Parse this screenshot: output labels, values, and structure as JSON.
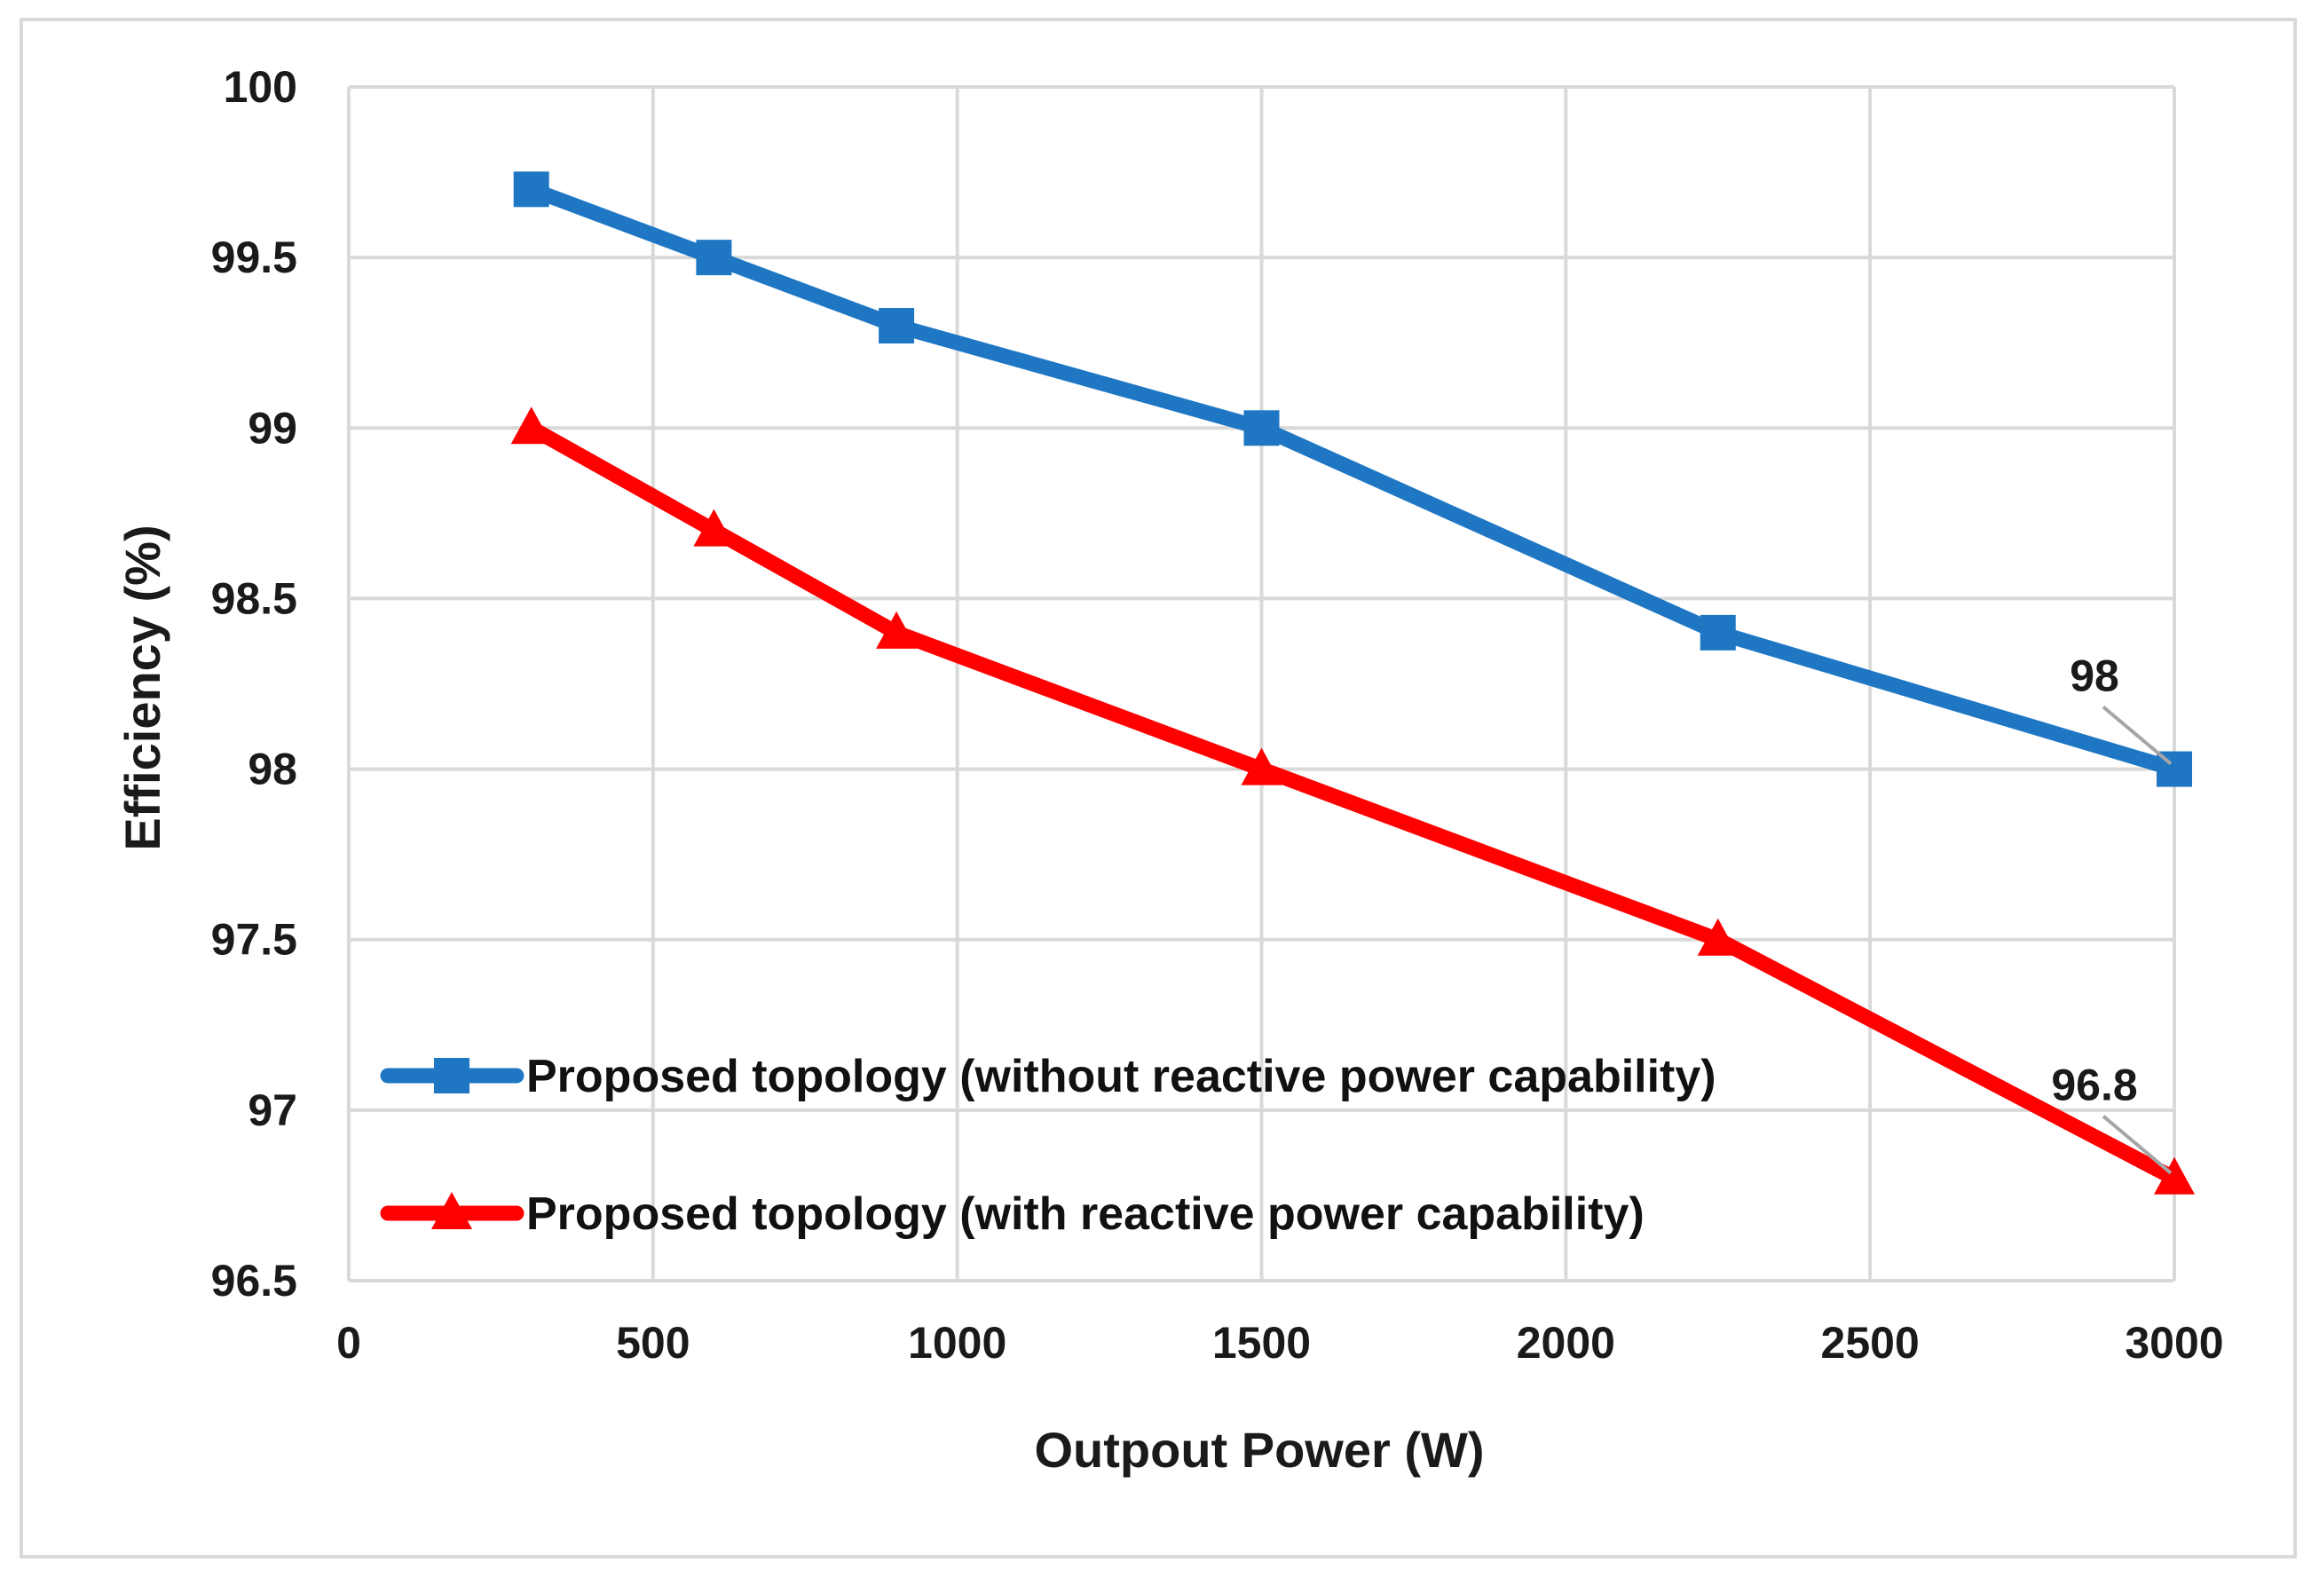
{
  "chart_data": {
    "type": "line",
    "title": "",
    "xlabel": "Outpout Power (W)",
    "ylabel": "Efficiency (%)",
    "xlim": [
      0,
      3000
    ],
    "ylim": [
      96.5,
      100
    ],
    "xticks": [
      "0",
      "500",
      "1000",
      "1500",
      "2000",
      "2500",
      "3000"
    ],
    "xtick_values": [
      0,
      500,
      1000,
      1500,
      2000,
      2500,
      3000
    ],
    "yticks": [
      "96.5",
      "97",
      "97.5",
      "98",
      "98.5",
      "99",
      "99.5",
      "100"
    ],
    "ytick_values": [
      96.5,
      97,
      97.5,
      98,
      98.5,
      99,
      99.5,
      100
    ],
    "grid": true,
    "legend_position": "bottom-left",
    "series": [
      {
        "name": "Proposed topology (without reactive power capability)",
        "color": "#1f77c4",
        "marker": "square",
        "x": [
          300,
          600,
          900,
          1500,
          2250,
          3000
        ],
        "values": [
          99.7,
          99.5,
          99.3,
          99.0,
          98.4,
          98.0
        ],
        "annotation": {
          "text": "98",
          "x": 3000,
          "y": 98.0
        }
      },
      {
        "name": "Proposed topology (with reactive power capability)",
        "color": "#ff0000",
        "marker": "triangle",
        "x": [
          300,
          600,
          900,
          1500,
          2250,
          3000
        ],
        "values": [
          99.0,
          98.7,
          98.4,
          98.0,
          97.5,
          96.8
        ],
        "annotation": {
          "text": "96.8",
          "x": 3000,
          "y": 96.8
        }
      }
    ]
  }
}
